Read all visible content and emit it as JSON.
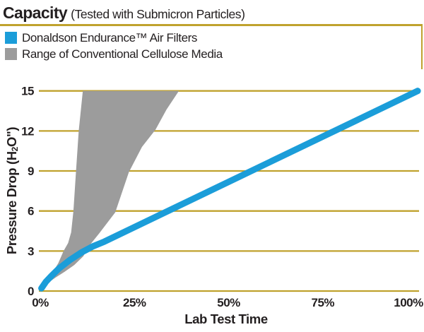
{
  "header": {
    "title": "Capacity",
    "subtitle": "(Tested with Submicron Particles)"
  },
  "legend": [
    {
      "label": "Donaldson Endurance™ Air Filters",
      "color": "#1B9DD9",
      "swatch": "blue-square"
    },
    {
      "label": "Range of Conventional Cellulose Media",
      "color": "#9C9C9C",
      "swatch": "gray-square"
    }
  ],
  "axes": {
    "y_label_parts": {
      "prefix": "Pressure Drop (H",
      "sub": "2",
      "suffix": "O\")"
    }
  },
  "colors": {
    "grid_gold": "#C0A22E",
    "line_blue": "#1B9DD9",
    "band_gray": "#9C9C9C",
    "text": "#231F20",
    "background": "#FFFFFF"
  },
  "chart_data": {
    "type": "line",
    "title": "Capacity (Tested with Submicron Particles)",
    "xlabel": "Lab Test Time",
    "ylabel": "Pressure Drop (H2O\")",
    "xlim": [
      0,
      100
    ],
    "ylim": [
      0,
      15
    ],
    "grid": "horizontal",
    "legend_position": "top-left",
    "xticks": [
      {
        "value": 0,
        "label": "0%"
      },
      {
        "value": 25,
        "label": "25%"
      },
      {
        "value": 50,
        "label": "50%"
      },
      {
        "value": 75,
        "label": "75%"
      },
      {
        "value": 100,
        "label": "100%"
      }
    ],
    "yticks": [
      {
        "value": 0,
        "label": "0"
      },
      {
        "value": 3,
        "label": "3"
      },
      {
        "value": 6,
        "label": "6"
      },
      {
        "value": 9,
        "label": "9"
      },
      {
        "value": 12,
        "label": "12"
      },
      {
        "value": 15,
        "label": "15"
      }
    ],
    "series": [
      {
        "name": "Range of Conventional Cellulose Media",
        "type": "band",
        "color": "#9C9C9C",
        "lower": [
          [
            1.5,
            0.5
          ],
          [
            4,
            1.0
          ],
          [
            6.5,
            1.45
          ],
          [
            9,
            1.95
          ],
          [
            11.4,
            2.6
          ],
          [
            13.3,
            3.5
          ],
          [
            15.6,
            4.3
          ],
          [
            19.9,
            5.9
          ],
          [
            23.5,
            8.9
          ],
          [
            27,
            10.8
          ],
          [
            30.6,
            12.1
          ],
          [
            33.5,
            13.6
          ],
          [
            36.8,
            15
          ]
        ],
        "upper": [
          [
            1.5,
            0.5
          ],
          [
            3.2,
            1.35
          ],
          [
            4.8,
            2.1
          ],
          [
            6.2,
            3.0
          ],
          [
            7.4,
            3.6
          ],
          [
            8.2,
            4.4
          ],
          [
            8.8,
            6.0
          ],
          [
            9.5,
            9.0
          ],
          [
            10.2,
            12.0
          ],
          [
            11.3,
            15
          ]
        ]
      },
      {
        "name": "Donaldson Endurance™ Air Filters",
        "type": "line",
        "color": "#1B9DD9",
        "points": [
          [
            0.3,
            0.2
          ],
          [
            1.5,
            0.7
          ],
          [
            3,
            1.15
          ],
          [
            5,
            1.7
          ],
          [
            8,
            2.35
          ],
          [
            11,
            2.9
          ],
          [
            14,
            3.35
          ],
          [
            17,
            3.7
          ],
          [
            100.2,
            15
          ]
        ]
      }
    ]
  }
}
